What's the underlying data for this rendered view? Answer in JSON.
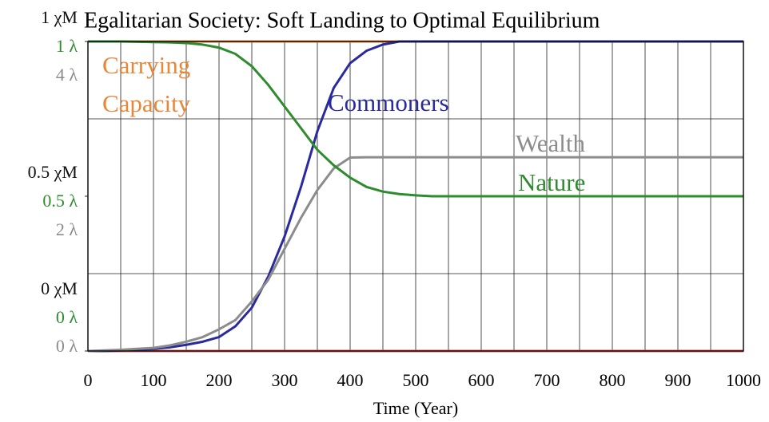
{
  "chart_data": {
    "type": "line",
    "title": "Egalitarian Society: Soft Landing to Optimal Equilibrium",
    "xlabel": "Time (Year)",
    "xlim": [
      0,
      1000
    ],
    "xticks": [
      0,
      100,
      200,
      300,
      400,
      500,
      600,
      700,
      800,
      900,
      1000
    ],
    "minor_xticks": [
      50,
      150,
      250,
      350,
      450,
      550,
      650,
      750,
      850,
      950
    ],
    "ylim": [
      0,
      1
    ],
    "yticks": [
      {
        "value": 0,
        "label": "0 χM"
      },
      {
        "value": 0.5,
        "label": "0.5 χM"
      },
      {
        "value": 1,
        "label": "1 χM"
      }
    ],
    "minor_yticks": [
      0.25,
      0.75
    ],
    "y2lim": [
      0,
      1
    ],
    "y2ticks": [
      {
        "value": 0,
        "label": "0 λ"
      },
      {
        "value": 0.5,
        "label": "0.5 λ"
      },
      {
        "value": 1,
        "label": "1 λ"
      }
    ],
    "y2color": "#2e8b2e",
    "y3lim": [
      0,
      4
    ],
    "y3ticks": [
      {
        "value": 0,
        "label": "0 λ"
      },
      {
        "value": 2,
        "label": "2 λ"
      },
      {
        "value": 4,
        "label": "4 λ"
      }
    ],
    "y3color": "#8c8c8c",
    "grid": true,
    "x": [
      0,
      25,
      50,
      75,
      100,
      125,
      150,
      175,
      200,
      225,
      250,
      275,
      300,
      325,
      350,
      375,
      400,
      425,
      450,
      475,
      500,
      525,
      550,
      575,
      600,
      625,
      650,
      675,
      700,
      725,
      750,
      775,
      800,
      825,
      850,
      875,
      900,
      925,
      950,
      975,
      1000
    ],
    "series": [
      {
        "name": "Carrying Capacity",
        "color": "#e8873a",
        "x": [
          0,
          1000
        ],
        "values": [
          1,
          1
        ]
      },
      {
        "color": "#e05050",
        "x": [
          0,
          1000
        ],
        "values": [
          0,
          0
        ]
      },
      {
        "name": "Commoners",
        "color": "#2a2a9e",
        "values": [
          0,
          0,
          0.002,
          0.004,
          0.007,
          0.012,
          0.02,
          0.03,
          0.045,
          0.08,
          0.14,
          0.24,
          0.37,
          0.53,
          0.71,
          0.85,
          0.93,
          0.97,
          0.99,
          1,
          1,
          1,
          1,
          1,
          1,
          1,
          1,
          1,
          1,
          1,
          1,
          1,
          1,
          1,
          1,
          1,
          1,
          1,
          1,
          1,
          1
        ]
      },
      {
        "name": "Wealth",
        "color": "#8c8c8c",
        "values": [
          0,
          0.002,
          0.004,
          0.007,
          0.01,
          0.018,
          0.03,
          0.045,
          0.07,
          0.1,
          0.16,
          0.23,
          0.33,
          0.43,
          0.52,
          0.59,
          0.625,
          0.626,
          0.626,
          0.626,
          0.626,
          0.626,
          0.626,
          0.626,
          0.626,
          0.626,
          0.626,
          0.626,
          0.626,
          0.626,
          0.626,
          0.626,
          0.626,
          0.626,
          0.626,
          0.626,
          0.626,
          0.626,
          0.626,
          0.626,
          0.626
        ]
      },
      {
        "name": "Nature",
        "color": "#2e8b2e",
        "values": [
          1,
          1,
          1,
          0.999,
          0.998,
          0.997,
          0.995,
          0.99,
          0.98,
          0.96,
          0.92,
          0.86,
          0.79,
          0.72,
          0.65,
          0.6,
          0.56,
          0.53,
          0.515,
          0.507,
          0.503,
          0.5,
          0.5,
          0.5,
          0.5,
          0.5,
          0.5,
          0.5,
          0.5,
          0.5,
          0.5,
          0.5,
          0.5,
          0.5,
          0.5,
          0.5,
          0.5,
          0.5,
          0.5,
          0.5,
          0.5
        ]
      }
    ]
  }
}
